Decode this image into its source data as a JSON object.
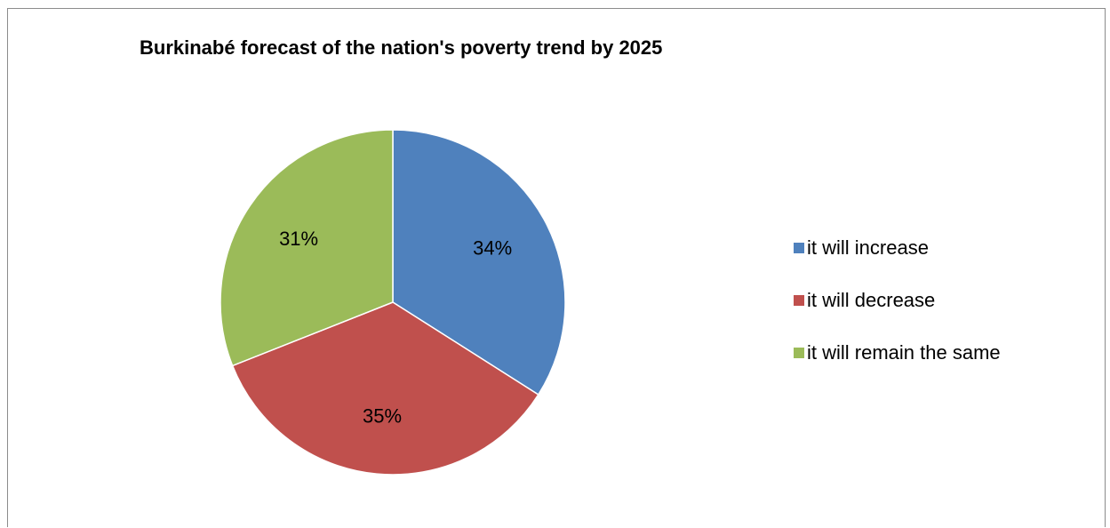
{
  "chart_data": {
    "type": "pie",
    "title": "Burkinabé forecast of the nation's poverty trend by 2025",
    "categories": [
      "it will increase",
      "it will decrease",
      "it will remain the same"
    ],
    "values": [
      34,
      35,
      31
    ],
    "data_labels": [
      "34%",
      "35%",
      "31%"
    ],
    "colors": [
      "#4f81bd",
      "#c0504d",
      "#9bbb59"
    ],
    "legend": "right"
  }
}
